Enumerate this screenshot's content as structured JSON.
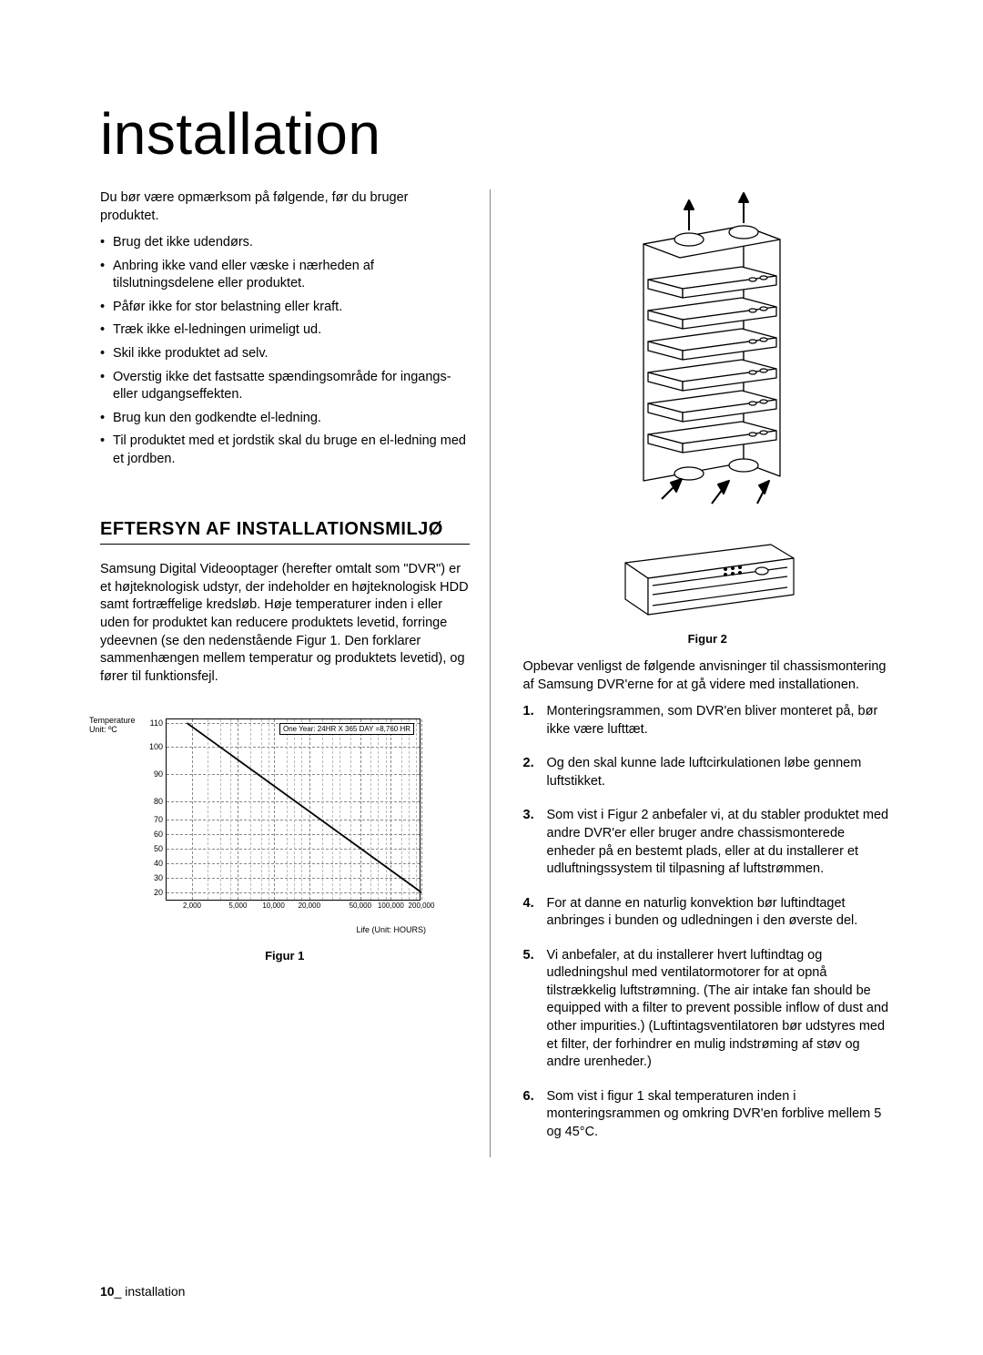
{
  "title": "installation",
  "intro": "Du bør være opmærksom på følgende, før du bruger produktet.",
  "bullets": [
    "Brug det ikke udendørs.",
    "Anbring ikke vand eller væske i nærheden af tilslutningsdelene eller produktet.",
    "Påfør ikke for stor belastning eller kraft.",
    "Træk ikke el-ledningen urimeligt ud.",
    "Skil ikke produktet ad selv.",
    "Overstig ikke det fastsatte spændingsområde for ingangs- eller udgangseffekten.",
    "Brug kun den godkendte el-ledning.",
    "Til produktet med et jordstik skal du bruge en el-ledning med et jordben."
  ],
  "sectionHeading": "EFTERSYN AF INSTALLATIONSMILJØ",
  "sectionBody": "Samsung Digital Videooptager (herefter omtalt som \"DVR\") er et højteknologisk udstyr, der indeholder en højteknologisk HDD samt fortræffelige kredsløb. Høje temperaturer inden i eller uden for produktet kan reducere produktets levetid, forringe ydeevnen (se den nedenstående Figur 1. Den forklarer sammenhængen mellem temperatur og produktets levetid), og fører til funktionsfejl.",
  "figure1": {
    "caption": "Figur 1",
    "ylabel_line1": "Temperature",
    "ylabel_line2": "Unit: ºC",
    "xlabel": "Life (Unit: HOURS)",
    "annotation": "One Year: 24HR X 365 DAY =8,760 HR",
    "yscale_type": "linear_gapped",
    "yticks": [
      110,
      100,
      90,
      80,
      70,
      60,
      50,
      40,
      30,
      20
    ],
    "ytick_positions_pct": [
      2,
      15,
      30,
      45,
      55,
      63,
      71,
      79,
      87,
      95
    ],
    "xscale_type": "log",
    "xticks": [
      "2,000",
      "5,000",
      "10,000",
      "20,000",
      "50,000",
      "100,000",
      "200,000"
    ],
    "xtick_positions_pct": [
      10,
      28,
      42,
      56,
      76,
      88,
      100
    ],
    "minor_v_positions_pct": [
      16,
      21,
      25,
      33,
      37,
      40,
      47,
      50,
      53,
      61,
      65,
      68,
      72,
      80,
      83,
      86,
      92,
      95,
      98
    ],
    "line": {
      "points_pct": [
        [
          8,
          2
        ],
        [
          100,
          95
        ]
      ],
      "stroke": "#000000",
      "stroke_width": 1.8
    },
    "grid_color": "#888888",
    "border_color": "#000000",
    "background": "#ffffff"
  },
  "figure2": {
    "caption": "Figur 2",
    "rack": {
      "stroke": "#000000",
      "fill": "#ffffff",
      "unit_count": 6
    }
  },
  "rightIntro": "Opbevar venligst de følgende anvisninger til chassismontering af Samsung DVR'erne for at gå videre med installationen.",
  "numbered": [
    "Monteringsrammen, som DVR'en bliver monteret på, bør ikke være lufttæt.",
    "Og den skal kunne lade luftcirkulationen løbe gennem luftstikket.",
    "Som vist i Figur 2 anbefaler vi, at du stabler produktet med andre DVR'er eller bruger andre chassismonterede enheder på en bestemt plads, eller at du installerer et udluftningssystem til tilpasning af luftstrømmen.",
    "For at danne en naturlig konvektion bør luftindtaget anbringes i bunden og udledningen i den øverste del.",
    "Vi anbefaler, at du installerer hvert luftindtag og udledningshul med ventilatormotorer for at opnå tilstrækkelig luftstrømning. (The air intake fan should be equipped with a filter to prevent possible inflow of dust and other impurities.) (Luftintagsventilatoren bør udstyres med et filter, der forhindrer en mulig indstrøming af støv og andre urenheder.)",
    "Som vist i figur 1 skal temperaturen inden i monteringsrammen og omkring DVR'en forblive mellem 5 og 45°C."
  ],
  "footer": {
    "pageNumber": "10",
    "sep": "_ ",
    "label": "installation"
  }
}
